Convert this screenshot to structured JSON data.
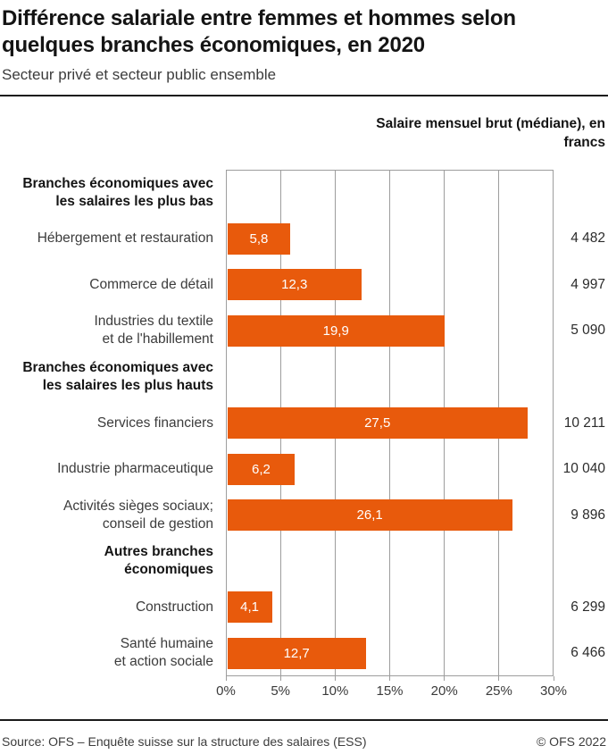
{
  "header": {
    "title": "Différence salariale entre femmes et hommes selon quelques branches économiques, en 2020",
    "subtitle": "Secteur privé et secteur public ensemble"
  },
  "chart_data": {
    "type": "bar",
    "orientation": "horizontal",
    "title": "Différence salariale entre femmes et hommes selon quelques branches économiques, en 2020",
    "subtitle": "Secteur privé et secteur public ensemble",
    "unit": "%",
    "xlim": [
      0,
      30
    ],
    "x_ticks": [
      "0%",
      "5%",
      "10%",
      "15%",
      "20%",
      "25%",
      "30%"
    ],
    "grid": true,
    "bar_color": "#E85A0C",
    "right_column_title": "Salaire mensuel brut (médiane), en francs",
    "rows": [
      {
        "kind": "group",
        "label": "Branches économiques avec\nles salaires les plus bas"
      },
      {
        "kind": "bar",
        "label": "Hébergement et restauration",
        "value": 5.8,
        "value_label": "5,8",
        "median_salary": "4 482"
      },
      {
        "kind": "bar",
        "label": "Commerce de détail",
        "value": 12.3,
        "value_label": "12,3",
        "median_salary": "4 997"
      },
      {
        "kind": "bar",
        "label": "Industries du textile\net de l'habillement",
        "value": 19.9,
        "value_label": "19,9",
        "median_salary": "5 090"
      },
      {
        "kind": "group",
        "label": "Branches économiques avec\nles salaires les plus hauts"
      },
      {
        "kind": "bar",
        "label": "Services financiers",
        "value": 27.5,
        "value_label": "27,5",
        "median_salary": "10 211"
      },
      {
        "kind": "bar",
        "label": "Industrie pharmaceutique",
        "value": 6.2,
        "value_label": "6,2",
        "median_salary": "10 040"
      },
      {
        "kind": "bar",
        "label": "Activités sièges sociaux;\nconseil de gestion",
        "value": 26.1,
        "value_label": "26,1",
        "median_salary": "9 896"
      },
      {
        "kind": "group",
        "label": "Autres branches\néconomiques"
      },
      {
        "kind": "bar",
        "label": "Construction",
        "value": 4.1,
        "value_label": "4,1",
        "median_salary": "6 299"
      },
      {
        "kind": "bar",
        "label": "Santé humaine\net action sociale",
        "value": 12.7,
        "value_label": "12,7",
        "median_salary": "6 466"
      }
    ]
  },
  "footer": {
    "source": "Source: OFS – Enquête suisse sur la structure des salaires (ESS)",
    "copyright": "© OFS 2022"
  }
}
